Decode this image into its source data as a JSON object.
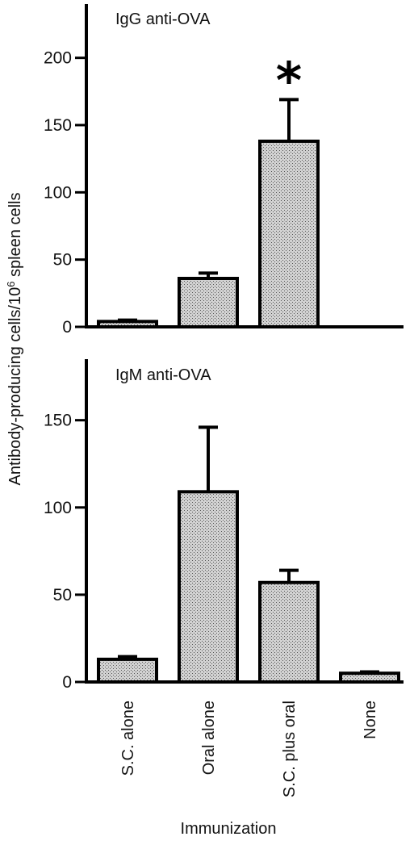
{
  "ylabel_main": "Antibody-producing cells/10",
  "ylabel_sup": "6",
  "ylabel_tail": " spleen cells",
  "xlabel": "Immunization",
  "chart_data": [
    {
      "type": "bar",
      "title": "IgG anti-OVA",
      "categories": [
        "S.C. alone",
        "Oral alone",
        "S.C. plus oral",
        "None"
      ],
      "values": [
        4,
        36,
        138,
        0
      ],
      "errors": [
        1,
        4,
        31,
        0
      ],
      "ylim": [
        0,
        240
      ],
      "yticks": [
        0,
        50,
        100,
        150,
        200
      ],
      "annotations": [
        {
          "category": "S.C. plus oral",
          "text": "*"
        }
      ],
      "grid": false,
      "bar_fill": "stippled grey"
    },
    {
      "type": "bar",
      "title": "IgM anti-OVA",
      "categories": [
        "S.C. alone",
        "Oral alone",
        "S.C. plus oral",
        "None"
      ],
      "values": [
        13,
        109,
        57,
        5
      ],
      "errors": [
        1.5,
        37,
        7,
        0.8
      ],
      "ylim": [
        0,
        185
      ],
      "yticks": [
        0,
        50,
        100,
        150
      ],
      "grid": false,
      "bar_fill": "stippled grey"
    }
  ]
}
